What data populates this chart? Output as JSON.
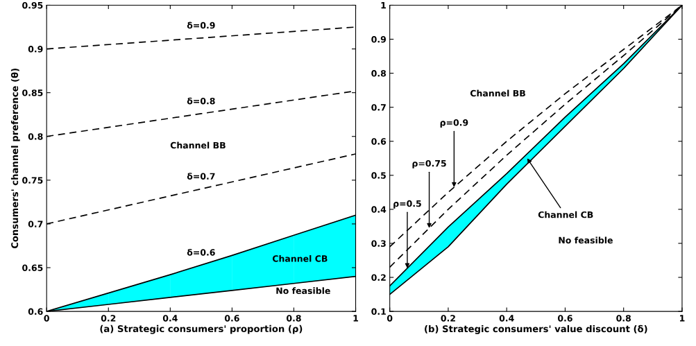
{
  "chart_data": [
    {
      "type": "line",
      "xlabel": "(a) Strategic consumers' proportion (ρ)",
      "ylabel": "Consumers' channel preference (θ)",
      "xlim": [
        0,
        1
      ],
      "xticks": [
        0,
        0.2,
        0.4,
        0.6,
        0.8,
        1
      ],
      "ylim": [
        0.6,
        0.95
      ],
      "yticks": [
        0.6,
        0.65,
        0.7,
        0.75,
        0.8,
        0.85,
        0.9,
        0.95
      ],
      "grid": false,
      "series": [
        {
          "color": "#000000",
          "colors": [
            "#00ffff",
            "#00ffff",
            "#00ffff",
            "#00ffff",
            "#00ffff",
            "#00ffff"
          ],
          "line_style": "solid",
          "x": [
            0,
            0.2,
            0.4,
            0.6,
            0.8,
            1
          ],
          "values": [
            0.6,
            0.621,
            0.642,
            0.664,
            0.687,
            0.71
          ],
          "lower": [
            0.6,
            0.608,
            0.616,
            0.624,
            0.632,
            0.64
          ],
          "upper": [
            0.6,
            0.621,
            0.642,
            0.664,
            0.687,
            0.71
          ]
        },
        {
          "color": "#000000",
          "line_style": "solid",
          "x": [
            0,
            0.2,
            0.4,
            0.6,
            0.8,
            1
          ],
          "values": [
            0.6,
            0.608,
            0.616,
            0.624,
            0.632,
            0.64
          ]
        },
        {
          "color": "#000000",
          "line_style": "dashed",
          "x": [
            0,
            0.5,
            1
          ],
          "values": [
            0.9,
            0.9125,
            0.925
          ]
        },
        {
          "color": "#000000",
          "line_style": "dashed",
          "x": [
            0,
            0.5,
            1
          ],
          "values": [
            0.8,
            0.826,
            0.852
          ]
        },
        {
          "color": "#000000",
          "line_style": "dashed",
          "x": [
            0,
            0.5,
            1
          ],
          "values": [
            0.7,
            0.74,
            0.78
          ]
        }
      ],
      "annotations": [
        {
          "text": "δ=0.9",
          "x": 0.5,
          "y": 0.9125
        },
        {
          "text": "δ=0.8",
          "x": 0.5,
          "y": 0.826
        },
        {
          "text": "δ=0.7",
          "x": 0.5,
          "y": 0.74
        },
        {
          "text": "δ=0.6",
          "x": 0.5,
          "y": 0.653
        },
        "Channel BB",
        "Channel CB",
        "No feasible"
      ]
    },
    {
      "type": "line",
      "xlabel": "(b) Strategic consumers' value discount (δ)",
      "xlim": [
        0,
        1
      ],
      "xticks": [
        0,
        0.2,
        0.4,
        0.6,
        0.8,
        1
      ],
      "ylim": [
        0.1,
        1
      ],
      "yticks": [
        0.1,
        0.2,
        0.3,
        0.4,
        0.5,
        0.6,
        0.7,
        0.8,
        0.9,
        1
      ],
      "grid": false,
      "series": [
        {
          "color": "#000000",
          "colors": [
            "#00ffff",
            "#00ffff",
            "#00ffff",
            "#00ffff",
            "#00ffff",
            "#00ffff"
          ],
          "line_style": "solid",
          "x": [
            0,
            0.2,
            0.4,
            0.6,
            0.8,
            1
          ],
          "values": [
            0.175,
            0.348,
            0.505,
            0.671,
            0.828,
            1.0
          ],
          "lower": [
            0.15,
            0.29,
            0.474,
            0.644,
            0.814,
            1.0
          ],
          "upper": [
            0.175,
            0.348,
            0.505,
            0.671,
            0.828,
            1.0
          ]
        },
        {
          "color": "#000000",
          "line_style": "solid",
          "x": [
            0,
            0.2,
            0.4,
            0.6,
            0.8,
            1
          ],
          "values": [
            0.15,
            0.29,
            0.474,
            0.644,
            0.814,
            1.0
          ]
        },
        {
          "color": "#000000",
          "line_style": "dashed",
          "x": [
            0,
            0.2,
            0.4,
            0.6,
            0.8,
            1
          ],
          "values": [
            0.29,
            0.45,
            0.6,
            0.74,
            0.87,
            1.0
          ]
        },
        {
          "color": "#000000",
          "line_style": "dashed",
          "x": [
            0,
            0.2,
            0.4,
            0.6,
            0.8,
            1
          ],
          "values": [
            0.23,
            0.4,
            0.559,
            0.709,
            0.852,
            1.0
          ]
        }
      ],
      "annotations": [
        {
          "text": "ρ=0.9",
          "x": 0.22,
          "y": 0.465
        },
        {
          "text": "ρ=0.75",
          "x": 0.135,
          "y": 0.345
        },
        {
          "text": "ρ=0.5",
          "x": 0.06,
          "y": 0.227
        },
        {
          "text": "Channel CB",
          "x": 0.47,
          "y": 0.55
        },
        "Channel BB",
        "No feasible"
      ]
    }
  ]
}
